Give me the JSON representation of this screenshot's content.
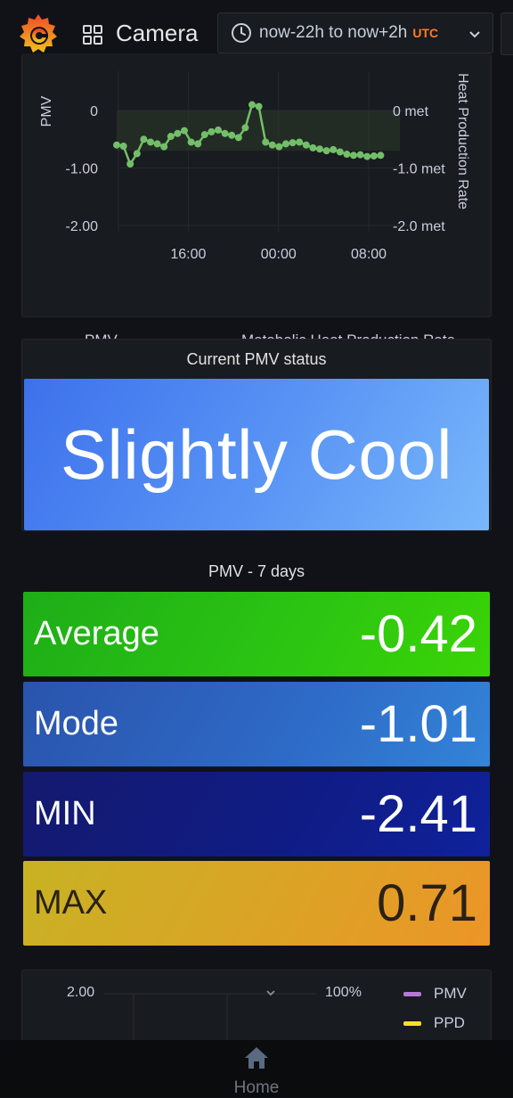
{
  "header": {
    "title": "Camera",
    "time_range": "now-22h to now+2h",
    "timezone": "UTC"
  },
  "chart_data": {
    "type": "line",
    "title": "",
    "ylabel": "PMV",
    "y2label": "Heat Production Rate",
    "ylim": [
      -2.0,
      0.4
    ],
    "y_ticks": [
      "0",
      "-1.00",
      "-2.00"
    ],
    "y2_ticks": [
      "0 met",
      "-1.0 met",
      "-2.0 met"
    ],
    "x_ticks": [
      "16:00",
      "00:00",
      "08:00"
    ],
    "x_hours": [
      0,
      0.6,
      1.2,
      1.8,
      2.4,
      3.0,
      3.6,
      4.2,
      4.8,
      5.4,
      6.0,
      6.6,
      7.2,
      7.8,
      8.4,
      9.0,
      9.6,
      10.2,
      10.8,
      11.4,
      12.0,
      12.6,
      13.2,
      13.8,
      14.4,
      15.0,
      15.6,
      16.2,
      16.8,
      17.4,
      18.0,
      18.6,
      19.2,
      19.8,
      20.4,
      21.0,
      21.6,
      22.2,
      22.8,
      23.4
    ],
    "x_start_hour": 10.6,
    "x_tick_hours": [
      16,
      24,
      32
    ],
    "series": [
      {
        "name": "PMV",
        "color": "#73bf69",
        "values": [
          -0.6,
          -0.62,
          -0.93,
          -0.75,
          -0.5,
          -0.55,
          -0.58,
          -0.63,
          -0.45,
          -0.4,
          -0.35,
          -0.55,
          -0.58,
          -0.42,
          -0.37,
          -0.34,
          -0.4,
          -0.43,
          -0.47,
          -0.3,
          0.1,
          0.07,
          -0.55,
          -0.6,
          -0.63,
          -0.58,
          -0.56,
          -0.55,
          -0.6,
          -0.65,
          -0.67,
          -0.7,
          -0.68,
          -0.72,
          -0.76,
          -0.78,
          -0.77,
          -0.8,
          -0.79,
          -0.78
        ]
      },
      {
        "name": "Metabolic Heat Production Rate",
        "color": "#ff780a",
        "values": []
      }
    ],
    "band": [
      0.0,
      -0.7
    ]
  },
  "status_panel": {
    "title": "Current PMV status",
    "value": "Slightly Cool"
  },
  "stats_panel": {
    "title": "PMV - 7 days",
    "items": [
      {
        "label": "Average",
        "value": "-0.42"
      },
      {
        "label": "Mode",
        "value": "-1.01"
      },
      {
        "label": "MIN",
        "value": "-2.41"
      },
      {
        "label": "MAX",
        "value": "0.71"
      }
    ]
  },
  "bottom_panel": {
    "left_tick": "2.00",
    "right_tick": "100%",
    "legend": [
      {
        "name": "PMV",
        "color": "#b877d9"
      },
      {
        "name": "PPD",
        "color": "#fade2a"
      }
    ]
  },
  "nav": {
    "home_label": "Home"
  },
  "colors": {
    "background": "#111217",
    "panel": "#181b1f",
    "pmv_line": "#73bf69",
    "heat_rate": "#ff780a"
  }
}
